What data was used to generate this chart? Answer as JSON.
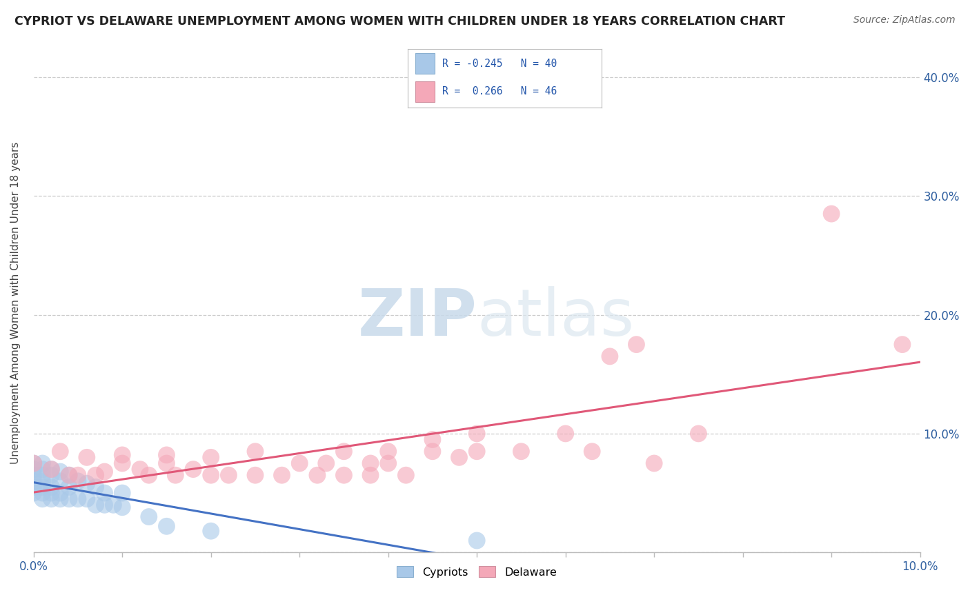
{
  "title": "CYPRIOT VS DELAWARE UNEMPLOYMENT AMONG WOMEN WITH CHILDREN UNDER 18 YEARS CORRELATION CHART",
  "source": "Source: ZipAtlas.com",
  "ylabel": "Unemployment Among Women with Children Under 18 years",
  "xlim": [
    0.0,
    0.1
  ],
  "ylim": [
    0.0,
    0.42
  ],
  "xticks": [
    0.0,
    0.01,
    0.02,
    0.03,
    0.04,
    0.05,
    0.06,
    0.07,
    0.08,
    0.09,
    0.1
  ],
  "xtick_labels": [
    "0.0%",
    "",
    "",
    "",
    "",
    "",
    "",
    "",
    "",
    "",
    "10.0%"
  ],
  "yticks": [
    0.0,
    0.1,
    0.2,
    0.3,
    0.4
  ],
  "ytick_labels_right": [
    "",
    "10.0%",
    "20.0%",
    "30.0%",
    "40.0%"
  ],
  "cypriot_R": -0.245,
  "cypriot_N": 40,
  "delaware_R": 0.266,
  "delaware_N": 46,
  "cypriot_color": "#a8c8e8",
  "delaware_color": "#f4a8b8",
  "cypriot_line_color": "#4472c4",
  "delaware_line_color": "#e05878",
  "watermark_zip": "ZIP",
  "watermark_atlas": "atlas",
  "bg_color": "#ffffff",
  "grid_color": "#cccccc",
  "cypriot_x": [
    0.0,
    0.0,
    0.0,
    0.0,
    0.0,
    0.0,
    0.001,
    0.001,
    0.001,
    0.001,
    0.001,
    0.001,
    0.001,
    0.002,
    0.002,
    0.002,
    0.002,
    0.002,
    0.003,
    0.003,
    0.003,
    0.003,
    0.004,
    0.004,
    0.004,
    0.005,
    0.005,
    0.006,
    0.006,
    0.007,
    0.007,
    0.008,
    0.008,
    0.009,
    0.01,
    0.01,
    0.013,
    0.015,
    0.02,
    0.05
  ],
  "cypriot_y": [
    0.05,
    0.055,
    0.06,
    0.065,
    0.07,
    0.075,
    0.045,
    0.05,
    0.055,
    0.06,
    0.065,
    0.07,
    0.075,
    0.045,
    0.05,
    0.055,
    0.065,
    0.07,
    0.045,
    0.05,
    0.06,
    0.068,
    0.045,
    0.055,
    0.065,
    0.045,
    0.06,
    0.045,
    0.058,
    0.04,
    0.055,
    0.04,
    0.05,
    0.04,
    0.038,
    0.05,
    0.03,
    0.022,
    0.018,
    0.01
  ],
  "delaware_x": [
    0.0,
    0.002,
    0.003,
    0.004,
    0.005,
    0.006,
    0.007,
    0.008,
    0.01,
    0.01,
    0.012,
    0.013,
    0.015,
    0.015,
    0.016,
    0.018,
    0.02,
    0.02,
    0.022,
    0.025,
    0.025,
    0.028,
    0.03,
    0.032,
    0.033,
    0.035,
    0.035,
    0.038,
    0.038,
    0.04,
    0.04,
    0.042,
    0.045,
    0.045,
    0.048,
    0.05,
    0.05,
    0.055,
    0.06,
    0.063,
    0.065,
    0.068,
    0.07,
    0.075,
    0.09,
    0.098
  ],
  "delaware_y": [
    0.075,
    0.07,
    0.085,
    0.065,
    0.065,
    0.08,
    0.065,
    0.068,
    0.075,
    0.082,
    0.07,
    0.065,
    0.075,
    0.082,
    0.065,
    0.07,
    0.065,
    0.08,
    0.065,
    0.065,
    0.085,
    0.065,
    0.075,
    0.065,
    0.075,
    0.065,
    0.085,
    0.065,
    0.075,
    0.075,
    0.085,
    0.065,
    0.085,
    0.095,
    0.08,
    0.085,
    0.1,
    0.085,
    0.1,
    0.085,
    0.165,
    0.175,
    0.075,
    0.1,
    0.285,
    0.175
  ]
}
